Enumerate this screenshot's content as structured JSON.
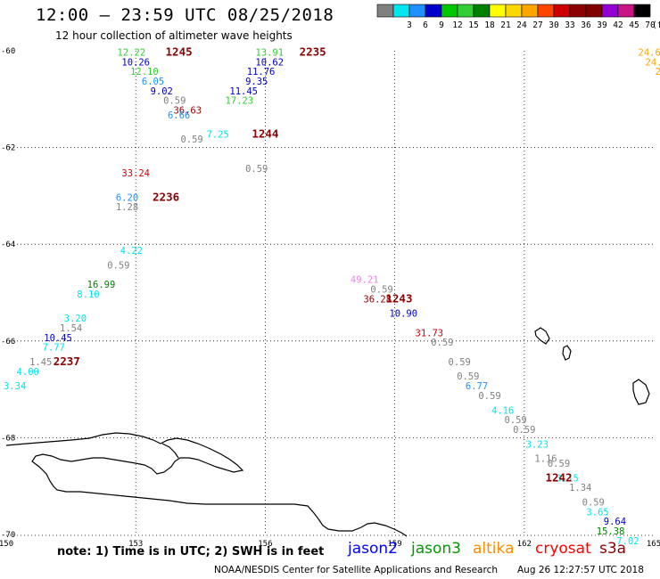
{
  "title": "12:00 – 23:59 UTC 08/25/2018",
  "subtitle": "12 hour collection of altimeter wave heights",
  "colorbar": {
    "unit_label": "(ft)",
    "bins": [
      {
        "label": "",
        "color": "#808080"
      },
      {
        "label": "3",
        "color": "#00e5ee"
      },
      {
        "label": "6",
        "color": "#1e90ff"
      },
      {
        "label": "9",
        "color": "#0000cd"
      },
      {
        "label": "12",
        "color": "#00c800"
      },
      {
        "label": "15",
        "color": "#32cd32"
      },
      {
        "label": "18",
        "color": "#008000"
      },
      {
        "label": "21",
        "color": "#ffff00"
      },
      {
        "label": "24",
        "color": "#ffd700"
      },
      {
        "label": "27",
        "color": "#ffa500"
      },
      {
        "label": "30",
        "color": "#ff4500"
      },
      {
        "label": "33",
        "color": "#cc0000"
      },
      {
        "label": "36",
        "color": "#8b0000"
      },
      {
        "label": "39",
        "color": "#800000"
      },
      {
        "label": "42",
        "color": "#9400d3"
      },
      {
        "label": "45",
        "color": "#c71585"
      },
      {
        "label": "70",
        "color": "#000000"
      }
    ]
  },
  "axes": {
    "lon_ticks": [
      "150",
      "153",
      "156",
      "159",
      "162",
      "165"
    ],
    "lat_ticks": [
      "-60",
      "-62",
      "-64",
      "-66",
      "-68",
      "-70"
    ],
    "lon_range": [
      150,
      165
    ],
    "lat_range": [
      -60,
      -70
    ]
  },
  "chart_data": {
    "type": "scatter",
    "title": "12:00 – 23:59 UTC 08/25/2018",
    "subtitle": "12 hour collection of altimeter wave heights",
    "unit": "ft",
    "time_labels": [
      {
        "text": "1245",
        "lon": 154.0,
        "lat": -60.1
      },
      {
        "text": "2235",
        "lon": 157.1,
        "lat": -60.1
      },
      {
        "text": "1244",
        "lon": 156.0,
        "lat": -61.8
      },
      {
        "text": "2236",
        "lon": 153.7,
        "lat": -63.1
      },
      {
        "text": "1243",
        "lon": 159.1,
        "lat": -65.2
      },
      {
        "text": "2237",
        "lon": 151.4,
        "lat": -66.5
      },
      {
        "text": "1242",
        "lon": 162.8,
        "lat": -68.9
      }
    ],
    "points": [
      {
        "text": "13.91",
        "lon": 156.1,
        "lat": -60.1,
        "color": "#32cd32"
      },
      {
        "text": "10.62",
        "lon": 156.1,
        "lat": -60.3,
        "color": "#0000cd"
      },
      {
        "text": "11.76",
        "lon": 155.9,
        "lat": -60.5,
        "color": "#0000cd"
      },
      {
        "text": "9.35",
        "lon": 155.8,
        "lat": -60.7,
        "color": "#0000cd"
      },
      {
        "text": "11.45",
        "lon": 155.5,
        "lat": -60.9,
        "color": "#0000cd"
      },
      {
        "text": "17.23",
        "lon": 155.4,
        "lat": -61.1,
        "color": "#32cd32"
      },
      {
        "text": "12.22",
        "lon": 152.9,
        "lat": -60.1,
        "color": "#32cd32"
      },
      {
        "text": "10.26",
        "lon": 153.0,
        "lat": -60.3,
        "color": "#0000cd"
      },
      {
        "text": "12.10",
        "lon": 153.2,
        "lat": -60.5,
        "color": "#32cd32"
      },
      {
        "text": "6.05",
        "lon": 153.4,
        "lat": -60.7,
        "color": "#1e90ff"
      },
      {
        "text": "9.02",
        "lon": 153.6,
        "lat": -60.9,
        "color": "#0000cd"
      },
      {
        "text": "0.59",
        "lon": 153.9,
        "lat": -61.1,
        "color": "#808080"
      },
      {
        "text": "36.63",
        "lon": 154.2,
        "lat": -61.3,
        "color": "#8b0000"
      },
      {
        "text": "6.66",
        "lon": 154.0,
        "lat": -61.4,
        "color": "#1e90ff"
      },
      {
        "text": "7.25",
        "lon": 154.9,
        "lat": -61.8,
        "color": "#00e5ee"
      },
      {
        "text": "0.59",
        "lon": 154.3,
        "lat": -61.9,
        "color": "#808080"
      },
      {
        "text": "0.59",
        "lon": 155.8,
        "lat": -62.5,
        "color": "#808080"
      },
      {
        "text": "33.24",
        "lon": 153.0,
        "lat": -62.6,
        "color": "#cc0000"
      },
      {
        "text": "6.20",
        "lon": 152.8,
        "lat": -63.1,
        "color": "#1e90ff"
      },
      {
        "text": "1.28",
        "lon": 152.8,
        "lat": -63.3,
        "color": "#808080"
      },
      {
        "text": "4.22",
        "lon": 152.9,
        "lat": -64.2,
        "color": "#00e5ee"
      },
      {
        "text": "0.59",
        "lon": 152.6,
        "lat": -64.5,
        "color": "#808080"
      },
      {
        "text": "16.99",
        "lon": 152.2,
        "lat": -64.9,
        "color": "#008000"
      },
      {
        "text": "8.10",
        "lon": 151.9,
        "lat": -65.1,
        "color": "#00e5ee"
      },
      {
        "text": "3.20",
        "lon": 151.6,
        "lat": -65.6,
        "color": "#00e5ee"
      },
      {
        "text": "1.54",
        "lon": 151.5,
        "lat": -65.8,
        "color": "#808080"
      },
      {
        "text": "10.45",
        "lon": 151.2,
        "lat": -66.0,
        "color": "#0000cd"
      },
      {
        "text": "7.77",
        "lon": 151.1,
        "lat": -66.2,
        "color": "#00e5ee"
      },
      {
        "text": "1.45",
        "lon": 150.8,
        "lat": -66.5,
        "color": "#808080"
      },
      {
        "text": "4.00",
        "lon": 150.5,
        "lat": -66.7,
        "color": "#00e5ee"
      },
      {
        "text": "3.34",
        "lon": 150.2,
        "lat": -67.0,
        "color": "#00e5ee"
      },
      {
        "text": "49.21",
        "lon": 158.3,
        "lat": -64.8,
        "color": "#ee82ee"
      },
      {
        "text": "0.59",
        "lon": 158.7,
        "lat": -65.0,
        "color": "#808080"
      },
      {
        "text": "36.28",
        "lon": 158.6,
        "lat": -65.2,
        "color": "#8b0000"
      },
      {
        "text": "10.90",
        "lon": 159.2,
        "lat": -65.5,
        "color": "#0000cd"
      },
      {
        "text": "31.73",
        "lon": 159.8,
        "lat": -65.9,
        "color": "#cc0000"
      },
      {
        "text": "0.59",
        "lon": 160.1,
        "lat": -66.1,
        "color": "#808080"
      },
      {
        "text": "0.59",
        "lon": 160.5,
        "lat": -66.5,
        "color": "#808080"
      },
      {
        "text": "0.59",
        "lon": 160.7,
        "lat": -66.8,
        "color": "#808080"
      },
      {
        "text": "6.77",
        "lon": 160.9,
        "lat": -67.0,
        "color": "#1e90ff"
      },
      {
        "text": "0.59",
        "lon": 161.2,
        "lat": -67.2,
        "color": "#808080"
      },
      {
        "text": "4.16",
        "lon": 161.5,
        "lat": -67.5,
        "color": "#00e5ee"
      },
      {
        "text": "0.59",
        "lon": 161.8,
        "lat": -67.7,
        "color": "#808080"
      },
      {
        "text": "0.59",
        "lon": 162.0,
        "lat": -67.9,
        "color": "#808080"
      },
      {
        "text": "3.23",
        "lon": 162.3,
        "lat": -68.2,
        "color": "#00e5ee"
      },
      {
        "text": "1.16",
        "lon": 162.5,
        "lat": -68.5,
        "color": "#808080"
      },
      {
        "text": "0.59",
        "lon": 162.8,
        "lat": -68.6,
        "color": "#808080"
      },
      {
        "text": "3.15",
        "lon": 163.0,
        "lat": -68.9,
        "color": "#00e5ee"
      },
      {
        "text": "1.34",
        "lon": 163.3,
        "lat": -69.1,
        "color": "#808080"
      },
      {
        "text": "0.59",
        "lon": 163.6,
        "lat": -69.4,
        "color": "#808080"
      },
      {
        "text": "3.65",
        "lon": 163.7,
        "lat": -69.6,
        "color": "#00e5ee"
      },
      {
        "text": "9.64",
        "lon": 164.1,
        "lat": -69.8,
        "color": "#0000cd"
      },
      {
        "text": "15.38",
        "lon": 164.0,
        "lat": -70.0,
        "color": "#008000"
      },
      {
        "text": "7.02",
        "lon": 164.4,
        "lat": -70.2,
        "color": "#00e5ee"
      },
      {
        "text": "24.6",
        "lon": 164.9,
        "lat": -60.1,
        "color": "#ffa500"
      },
      {
        "text": "24.",
        "lon": 165.0,
        "lat": -60.3,
        "color": "#ffa500"
      },
      {
        "text": "2",
        "lon": 165.1,
        "lat": -60.5,
        "color": "#ffa500"
      }
    ]
  },
  "footer": {
    "note": "note: 1) Time is in UTC; 2) SWH is in feet",
    "satellites": [
      {
        "name": "jason2",
        "color": "#0000ff"
      },
      {
        "name": "jason3",
        "color": "#009900"
      },
      {
        "name": "altika",
        "color": "#ff8c00"
      },
      {
        "name": "cryosat",
        "color": "#ff0000"
      },
      {
        "name": "s3a",
        "color": "#8b0000"
      }
    ],
    "credit": "NOAA/NESDIS Center for Satellite Applications and Research",
    "generated": "Aug 26 12:27:57 UTC 2018"
  }
}
